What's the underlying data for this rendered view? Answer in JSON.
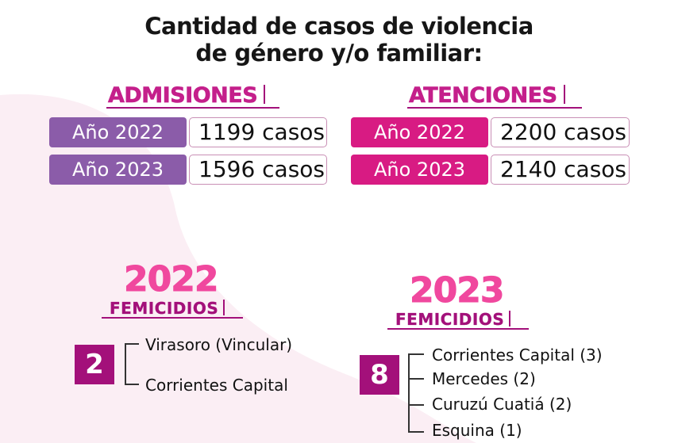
{
  "title": {
    "line1": "Cantidad de casos de violencia",
    "line2": "de género y/o familiar:"
  },
  "admisiones": {
    "heading": "ADMISIONES",
    "rows": [
      {
        "label": "Año 2022",
        "value": "1199 casos"
      },
      {
        "label": "Año 2023",
        "value": "1596 casos"
      }
    ]
  },
  "atenciones": {
    "heading": "ATENCIONES",
    "rows": [
      {
        "label": "Año 2022",
        "value": "2200 casos"
      },
      {
        "label": "Año 2023",
        "value": "2140 casos"
      }
    ]
  },
  "femicidios_2022": {
    "year": "2022",
    "label": "FEMICIDIOS",
    "count": "2",
    "places": [
      "Virasoro (Vincular)",
      "Corrientes Capital"
    ]
  },
  "femicidios_2023": {
    "year": "2023",
    "label": "FEMICIDIOS",
    "count": "8",
    "places": [
      "Corrientes Capital (3)",
      "Mercedes (2)",
      "Curuzú Cuatiá (2)",
      "Esquina (1)"
    ]
  },
  "colors": {
    "purple": "#8b5ca9",
    "magenta": "#d81b83",
    "dark_magenta": "#a3107a",
    "pink": "#f0489e",
    "background_shape": "#fbeef4"
  }
}
